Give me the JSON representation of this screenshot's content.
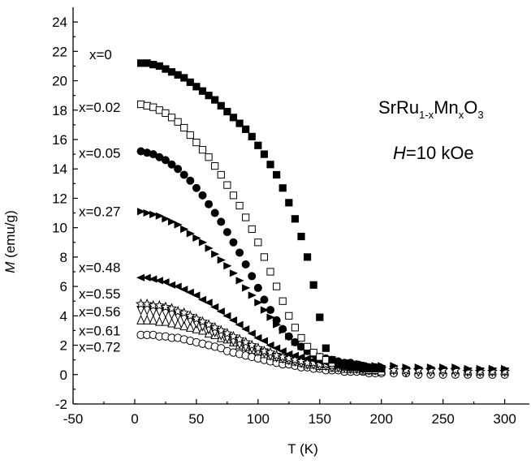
{
  "chart_data": {
    "type": "scatter",
    "xlabel": "T (K)",
    "ylabel_symbol": "M",
    "ylabel_unit": " (emu/g)",
    "xlim": [
      -50,
      320
    ],
    "ylim": [
      -2,
      25
    ],
    "xticks": [
      -50,
      0,
      50,
      100,
      150,
      200,
      250,
      300
    ],
    "yticks": [
      -2,
      0,
      2,
      4,
      6,
      8,
      10,
      12,
      14,
      16,
      18,
      20,
      22,
      24
    ],
    "annotations": {
      "formula": {
        "base": "SrRu",
        "sub1": "1-x",
        "mid": "Mn",
        "sub2": "x",
        "end": "O",
        "sub3": "3"
      },
      "field": {
        "symbol": "H",
        "text": "=10 kOe"
      }
    },
    "series": [
      {
        "name": "x=0",
        "marker": "square-filled",
        "x": [
          5,
          10,
          15,
          20,
          25,
          30,
          35,
          40,
          45,
          50,
          55,
          60,
          65,
          70,
          75,
          80,
          85,
          90,
          95,
          100,
          105,
          110,
          115,
          120,
          125,
          130,
          135,
          140,
          145,
          150,
          155,
          160,
          165,
          170,
          175,
          180,
          185,
          190,
          195,
          200
        ],
        "y": [
          21.2,
          21.2,
          21.1,
          21.0,
          20.8,
          20.6,
          20.4,
          20.2,
          19.9,
          19.6,
          19.3,
          19.0,
          18.7,
          18.3,
          17.9,
          17.5,
          17.1,
          16.7,
          16.2,
          15.6,
          15.0,
          14.3,
          13.6,
          12.7,
          11.7,
          10.6,
          9.4,
          8.0,
          6.1,
          3.9,
          1.8,
          1.0,
          0.7,
          0.6,
          0.5,
          0.5,
          0.4,
          0.4,
          0.4,
          0.4
        ]
      },
      {
        "name": "x=0.02",
        "marker": "square-open",
        "x": [
          5,
          10,
          15,
          20,
          25,
          30,
          35,
          40,
          45,
          50,
          55,
          60,
          65,
          70,
          75,
          80,
          85,
          90,
          95,
          100,
          105,
          110,
          115,
          120,
          125,
          130,
          135,
          140,
          145,
          150,
          155,
          160,
          165,
          170,
          175,
          180,
          185,
          190,
          195,
          200
        ],
        "y": [
          18.4,
          18.3,
          18.2,
          18.0,
          17.8,
          17.5,
          17.2,
          16.8,
          16.3,
          15.8,
          15.3,
          14.8,
          14.2,
          13.6,
          12.9,
          12.2,
          11.5,
          10.7,
          9.9,
          9.0,
          8.0,
          7.0,
          6.0,
          5.0,
          4.0,
          3.2,
          2.5,
          1.9,
          1.5,
          1.2,
          1.0,
          0.8,
          0.7,
          0.6,
          0.5,
          0.5,
          0.4,
          0.3,
          0.3,
          0.2
        ]
      },
      {
        "name": "x=0.05",
        "marker": "circle-filled",
        "x": [
          5,
          10,
          15,
          20,
          25,
          30,
          35,
          40,
          45,
          50,
          55,
          60,
          65,
          70,
          75,
          80,
          85,
          90,
          95,
          100,
          105,
          110,
          115,
          120,
          125,
          130,
          135,
          140,
          145,
          150,
          155,
          160,
          165,
          170,
          175,
          180,
          185,
          190,
          195,
          200
        ],
        "y": [
          15.2,
          15.1,
          15.0,
          14.8,
          14.6,
          14.3,
          14.0,
          13.6,
          13.2,
          12.7,
          12.2,
          11.6,
          11.0,
          10.4,
          9.7,
          9.0,
          8.3,
          7.5,
          6.7,
          5.9,
          5.1,
          4.4,
          3.7,
          3.1,
          2.6,
          2.2,
          1.9,
          1.6,
          1.4,
          1.2,
          1.1,
          1.0,
          0.9,
          0.8,
          0.8,
          0.7,
          0.6,
          0.5,
          0.5,
          0.4
        ]
      },
      {
        "name": "x=0.27",
        "marker": "triangle-right-filled",
        "x": [
          5,
          10,
          15,
          20,
          25,
          30,
          35,
          40,
          45,
          50,
          55,
          60,
          65,
          70,
          75,
          80,
          85,
          90,
          95,
          100,
          105,
          110,
          115,
          120,
          125,
          130,
          135,
          140,
          145,
          150,
          155,
          160,
          165,
          170,
          175,
          180,
          185,
          190,
          195,
          200,
          210,
          220,
          230,
          240,
          250,
          260,
          270,
          280,
          290,
          300
        ],
        "y": [
          11.1,
          11.0,
          10.9,
          10.8,
          10.6,
          10.4,
          10.2,
          9.9,
          9.6,
          9.3,
          9.0,
          8.6,
          8.2,
          7.8,
          7.4,
          6.9,
          6.4,
          5.9,
          5.4,
          4.9,
          4.4,
          3.9,
          3.4,
          3.0,
          2.6,
          2.2,
          1.9,
          1.6,
          1.4,
          1.2,
          1.1,
          1.0,
          0.9,
          0.8,
          0.8,
          0.7,
          0.7,
          0.6,
          0.6,
          0.6,
          0.6,
          0.5,
          0.5,
          0.5,
          0.5,
          0.5,
          0.4,
          0.4,
          0.4,
          0.4
        ]
      },
      {
        "name": "x=0.48",
        "marker": "triangle-left-filled",
        "x": [
          5,
          10,
          15,
          20,
          25,
          30,
          35,
          40,
          45,
          50,
          55,
          60,
          65,
          70,
          75,
          80,
          85,
          90,
          95,
          100,
          105,
          110,
          115,
          120,
          125,
          130,
          135,
          140,
          145,
          150,
          155,
          160,
          165,
          170,
          175,
          180,
          185,
          190,
          195,
          200
        ],
        "y": [
          6.6,
          6.6,
          6.5,
          6.4,
          6.3,
          6.1,
          6.0,
          5.8,
          5.6,
          5.4,
          5.1,
          4.9,
          4.6,
          4.3,
          4.0,
          3.7,
          3.4,
          3.1,
          2.8,
          2.5,
          2.3,
          2.0,
          1.8,
          1.6,
          1.4,
          1.3,
          1.2,
          1.1,
          1.0,
          0.9,
          0.8,
          0.8,
          0.7,
          0.7,
          0.6,
          0.6,
          0.5,
          0.5,
          0.5,
          0.4
        ]
      },
      {
        "name": "x=0.55",
        "marker": "star-open",
        "x": [
          5,
          10,
          15,
          20,
          25,
          30,
          35,
          40,
          45,
          50,
          55,
          60,
          65,
          70,
          75,
          80,
          85,
          90,
          95,
          100,
          105,
          110,
          115,
          120,
          125,
          130,
          135,
          140,
          145,
          150,
          155,
          160,
          165,
          170,
          175,
          180,
          185,
          190,
          195,
          200,
          210,
          220,
          230,
          240,
          250,
          260,
          270,
          280,
          290,
          300
        ],
        "y": [
          4.8,
          4.8,
          4.7,
          4.7,
          4.6,
          4.5,
          4.3,
          4.2,
          4.0,
          3.8,
          3.6,
          3.4,
          3.2,
          3.0,
          2.8,
          2.6,
          2.4,
          2.2,
          2.0,
          1.8,
          1.6,
          1.5,
          1.3,
          1.2,
          1.1,
          1.0,
          0.9,
          0.8,
          0.8,
          0.7,
          0.7,
          0.6,
          0.6,
          0.5,
          0.5,
          0.5,
          0.4,
          0.4,
          0.4,
          0.4,
          0.3,
          0.3,
          0.3,
          0.3,
          0.3,
          0.3,
          0.2,
          0.2,
          0.2,
          0.2
        ]
      },
      {
        "name": "x=0.56",
        "marker": "triangle-down-open",
        "x": [
          5,
          10,
          15,
          20,
          25,
          30,
          35,
          40,
          45,
          50,
          55,
          60,
          65,
          70,
          75,
          80,
          85,
          90,
          95,
          100,
          105,
          110,
          115,
          120,
          125,
          130,
          135,
          140,
          145,
          150,
          155,
          160,
          165,
          170,
          175,
          180,
          185,
          190,
          195,
          200,
          210,
          220,
          230,
          240,
          250,
          260,
          270,
          280,
          290,
          300
        ],
        "y": [
          4.4,
          4.4,
          4.3,
          4.3,
          4.2,
          4.1,
          4.0,
          3.8,
          3.7,
          3.5,
          3.3,
          3.1,
          2.9,
          2.7,
          2.5,
          2.3,
          2.1,
          1.9,
          1.8,
          1.6,
          1.5,
          1.3,
          1.2,
          1.1,
          1.0,
          0.9,
          0.8,
          0.7,
          0.7,
          0.6,
          0.6,
          0.5,
          0.5,
          0.5,
          0.4,
          0.4,
          0.4,
          0.3,
          0.3,
          0.3,
          0.3,
          0.2,
          0.2,
          0.2,
          0.2,
          0.2,
          0.2,
          0.2,
          0.2,
          0.2
        ]
      },
      {
        "name": "x=0.61",
        "marker": "triangle-up-open",
        "x": [
          5,
          10,
          15,
          20,
          25,
          30,
          35,
          40,
          45,
          50,
          55,
          60,
          65,
          70,
          75,
          80,
          85,
          90,
          95,
          100,
          105,
          110,
          115,
          120,
          125,
          130,
          135,
          140,
          145,
          150,
          155,
          160,
          165,
          170,
          175,
          180,
          185,
          190,
          195,
          200
        ],
        "y": [
          3.7,
          3.7,
          3.7,
          3.6,
          3.6,
          3.5,
          3.4,
          3.3,
          3.2,
          3.1,
          3.0,
          2.8,
          2.7,
          2.5,
          2.4,
          2.2,
          2.0,
          1.9,
          1.7,
          1.6,
          1.4,
          1.3,
          1.2,
          1.1,
          1.0,
          0.9,
          0.8,
          0.7,
          0.7,
          0.6,
          0.6,
          0.5,
          0.5,
          0.4,
          0.4,
          0.4,
          0.3,
          0.3,
          0.3,
          0.3
        ]
      },
      {
        "name": "x=0.72",
        "marker": "circle-open",
        "x": [
          5,
          10,
          15,
          20,
          25,
          30,
          35,
          40,
          45,
          50,
          55,
          60,
          65,
          70,
          75,
          80,
          85,
          90,
          95,
          100,
          105,
          110,
          115,
          120,
          125,
          130,
          135,
          140,
          145,
          150,
          155,
          160,
          165,
          170,
          175,
          180,
          185,
          190,
          195,
          200,
          210,
          220,
          230,
          240,
          250,
          260,
          270,
          280,
          290,
          300
        ],
        "y": [
          2.7,
          2.7,
          2.7,
          2.6,
          2.6,
          2.5,
          2.5,
          2.4,
          2.3,
          2.2,
          2.1,
          2.0,
          1.9,
          1.8,
          1.6,
          1.5,
          1.4,
          1.3,
          1.2,
          1.1,
          1.0,
          0.9,
          0.8,
          0.7,
          0.7,
          0.6,
          0.5,
          0.5,
          0.4,
          0.4,
          0.3,
          0.3,
          0.3,
          0.2,
          0.2,
          0.2,
          0.2,
          0.1,
          0.1,
          0.1,
          0.1,
          0.1,
          0.0,
          0.0,
          0.0,
          0.0,
          0.0,
          0.0,
          0.0,
          0.0
        ]
      }
    ],
    "series_labels": [
      "x=0",
      "x=0.02",
      "x=0.05",
      "x=0.27",
      "x=0.48",
      "x=0.55",
      "x=0.56",
      "x=0.61",
      "x=0.72"
    ],
    "label_y": [
      21.8,
      18.2,
      15.1,
      11.1,
      7.3,
      5.5,
      4.3,
      3.0,
      1.9
    ]
  }
}
